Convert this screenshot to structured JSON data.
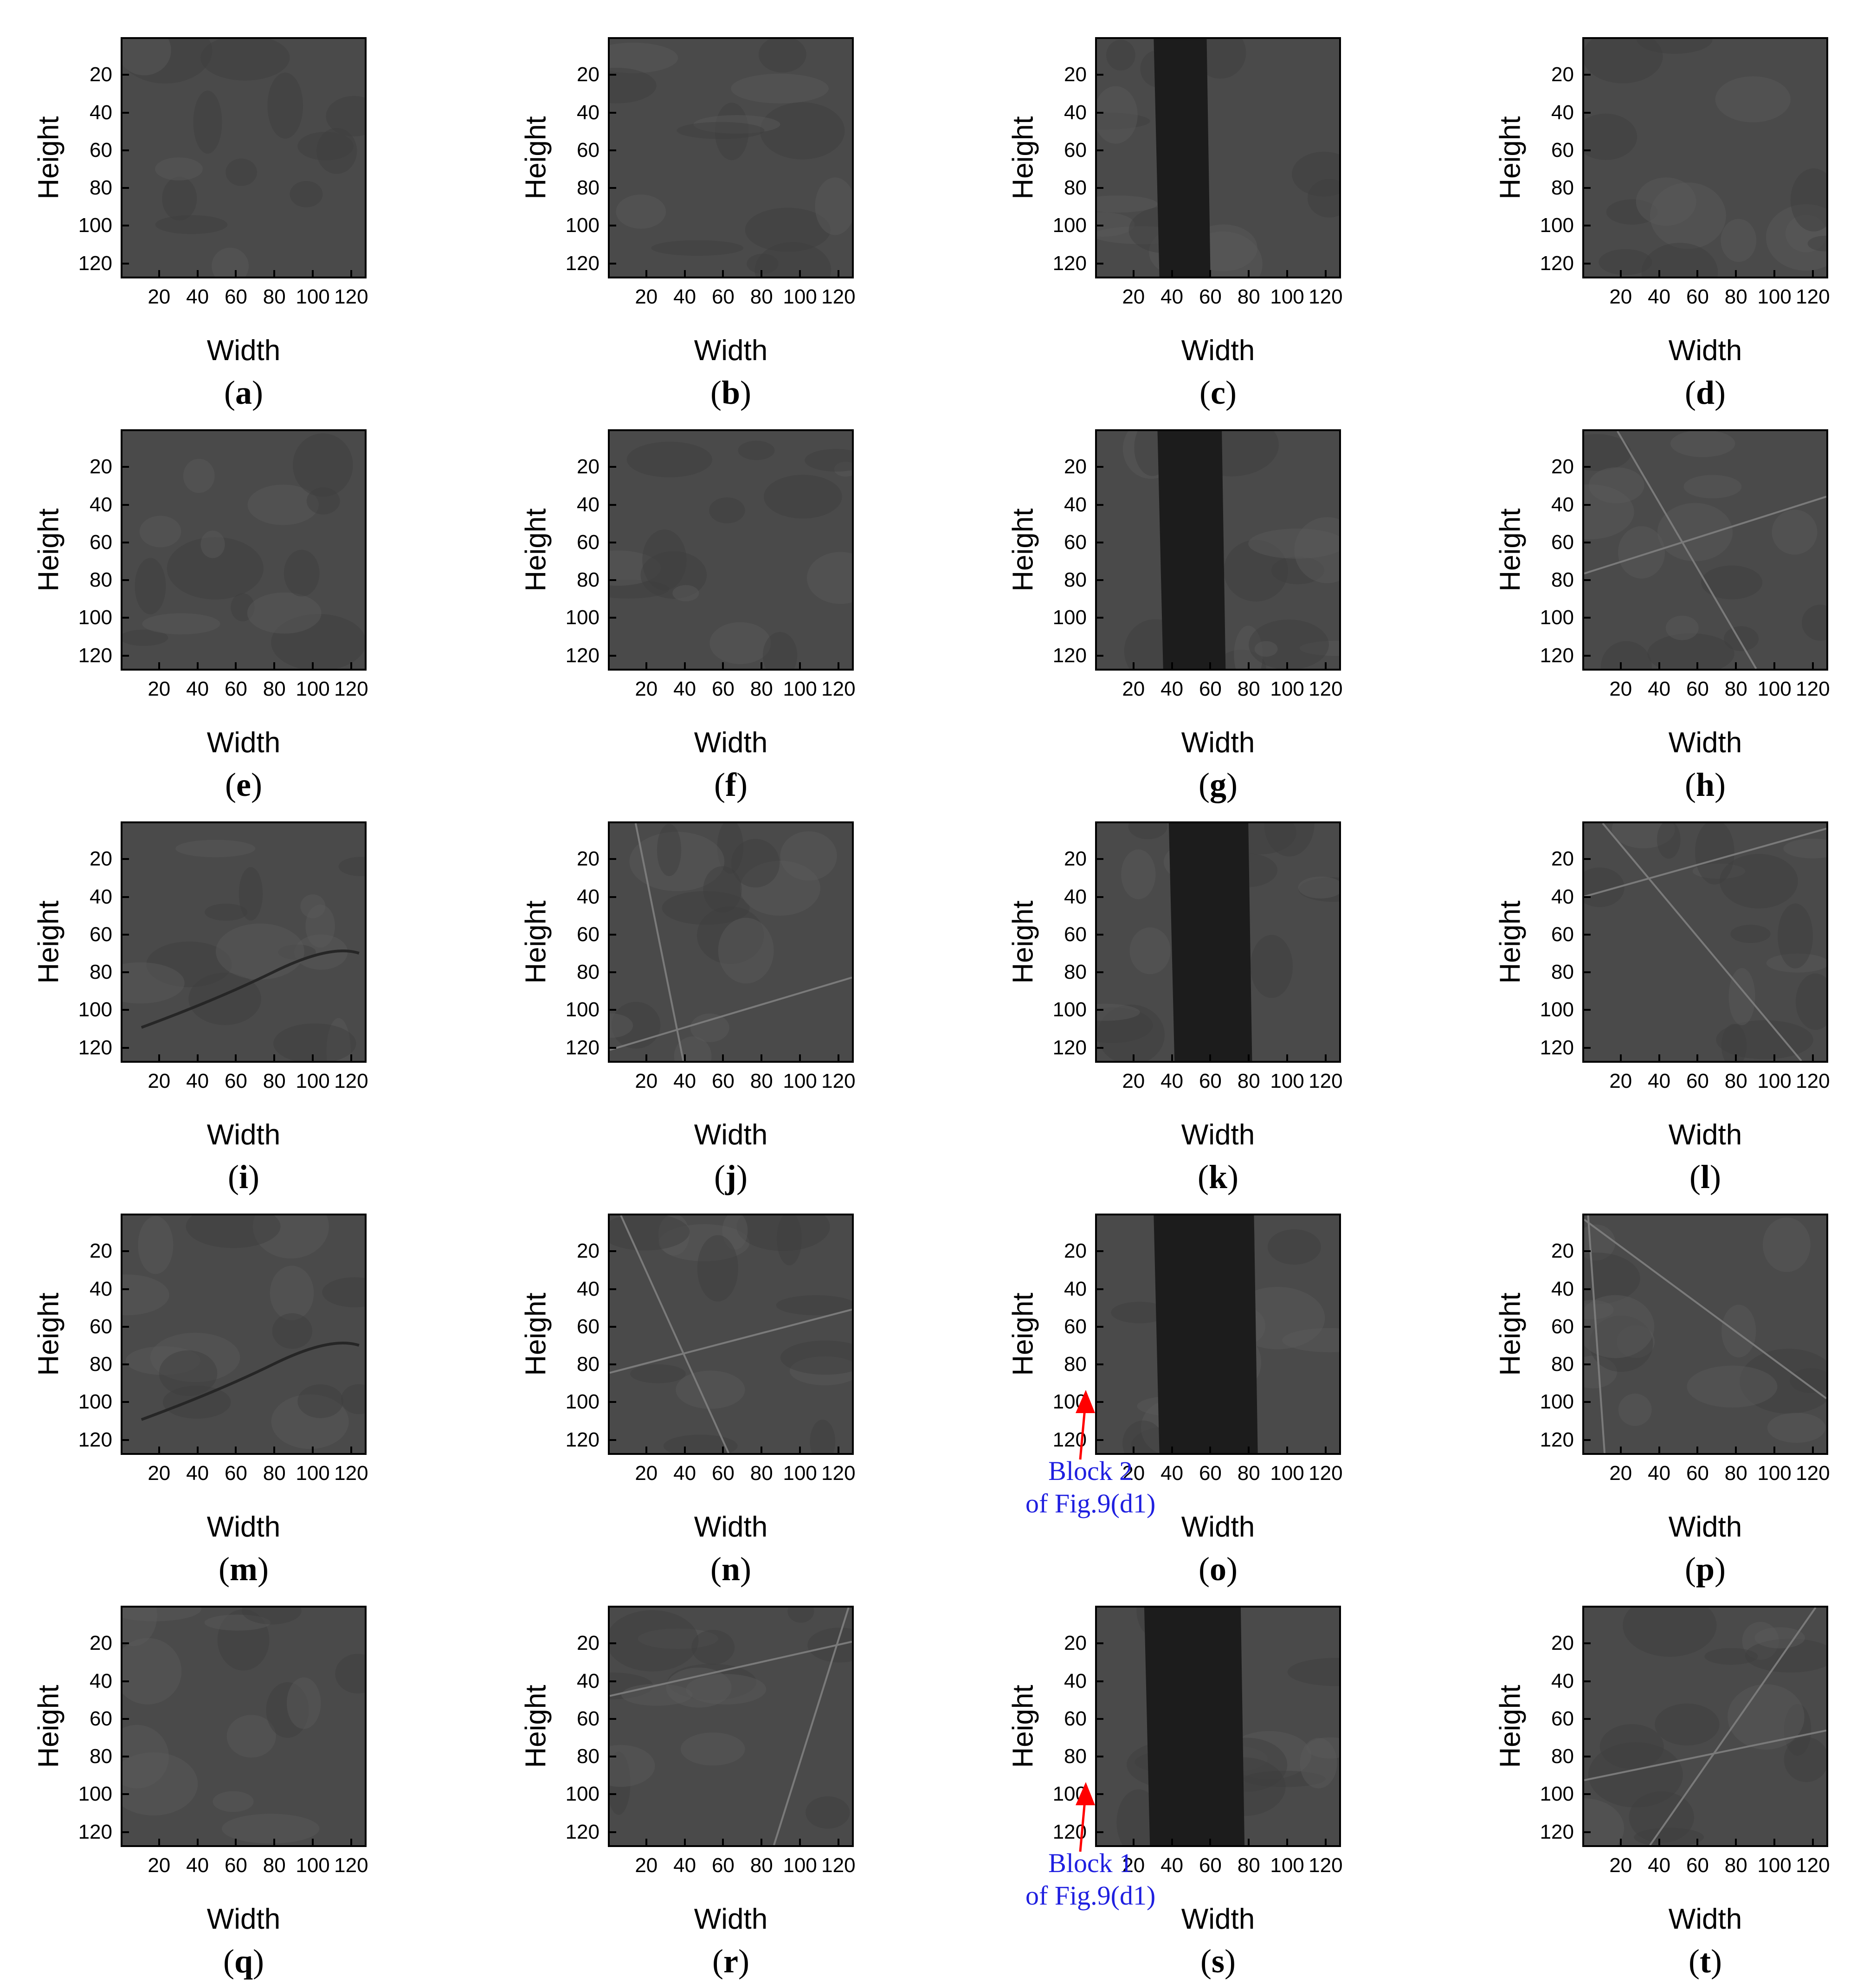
{
  "axis": {
    "ylabel": "Height",
    "xlabel": "Width",
    "yticks": [
      "20",
      "40",
      "60",
      "80",
      "100",
      "120"
    ],
    "xticks": [
      "20",
      "40",
      "60",
      "80",
      "100",
      "120"
    ]
  },
  "panels": [
    {
      "letter": "a",
      "feature": "plain"
    },
    {
      "letter": "b",
      "feature": "plain"
    },
    {
      "letter": "c",
      "feature": "dark-band",
      "band": [
        30,
        60
      ]
    },
    {
      "letter": "d",
      "feature": "plain"
    },
    {
      "letter": "e",
      "feature": "plain"
    },
    {
      "letter": "f",
      "feature": "plain"
    },
    {
      "letter": "g",
      "feature": "dark-band",
      "band": [
        32,
        68
      ]
    },
    {
      "letter": "h",
      "feature": "scratch"
    },
    {
      "letter": "i",
      "feature": "crack"
    },
    {
      "letter": "j",
      "feature": "scratch"
    },
    {
      "letter": "k",
      "feature": "dark-band",
      "band": [
        38,
        82
      ]
    },
    {
      "letter": "l",
      "feature": "scratch"
    },
    {
      "letter": "m",
      "feature": "crack"
    },
    {
      "letter": "n",
      "feature": "scratch"
    },
    {
      "letter": "o",
      "feature": "dark-band",
      "band": [
        30,
        85
      ]
    },
    {
      "letter": "p",
      "feature": "scratch"
    },
    {
      "letter": "q",
      "feature": "plain"
    },
    {
      "letter": "r",
      "feature": "scratch"
    },
    {
      "letter": "s",
      "feature": "dark-band",
      "band": [
        25,
        78
      ]
    },
    {
      "letter": "t",
      "feature": "scratch"
    }
  ],
  "annotations": [
    {
      "panel": "o",
      "line1": "Block 2",
      "line2": "of Fig.9(d1)"
    },
    {
      "panel": "s",
      "line1": "Block 1",
      "line2": "of Fig.9(d1)"
    }
  ],
  "colors": {
    "image_gray": "#4a4a4a",
    "band_dark": "#1c1c1c",
    "annotation_text": "#1f1fe0",
    "arrow": "#ff0000"
  }
}
